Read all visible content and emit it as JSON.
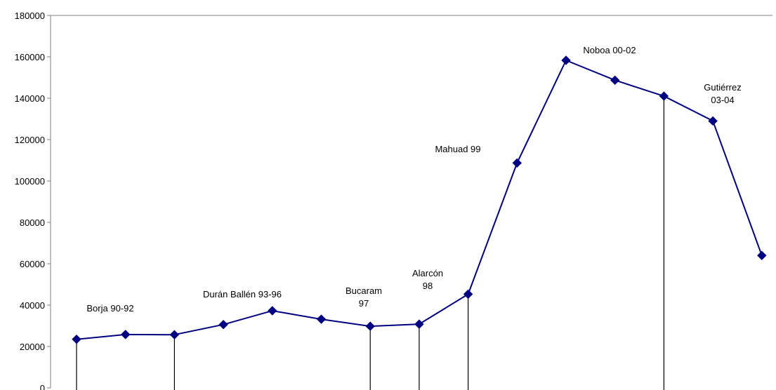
{
  "chart_data": {
    "type": "line",
    "title": "",
    "xlabel": "",
    "ylabel": "",
    "ylim": [
      0,
      180000
    ],
    "y_ticks": [
      0,
      20000,
      40000,
      60000,
      80000,
      100000,
      120000,
      140000,
      160000,
      180000
    ],
    "grid": false,
    "legend": "none",
    "series": [
      {
        "color": "#000080",
        "marker": "diamond",
        "values": [
          23500,
          25800,
          25700,
          30600,
          37300,
          33200,
          29800,
          30800,
          45300,
          108700,
          158300,
          148700,
          141000,
          129000,
          64000
        ]
      }
    ],
    "drop_lines_at": [
      0,
      2,
      6,
      7,
      8,
      12
    ],
    "annotations": [
      {
        "lines": [
          "Borja 90-92"
        ],
        "point": 0
      },
      {
        "lines": [
          "Durán Ballén 93-96"
        ],
        "point": 3
      },
      {
        "lines": [
          "Bucaram",
          "97"
        ],
        "point": 6
      },
      {
        "lines": [
          "Alarcón",
          "98"
        ],
        "point": 7
      },
      {
        "lines": [
          "Mahuad 99"
        ],
        "point": 9
      },
      {
        "lines": [
          "Noboa 00-02"
        ],
        "point": 10
      },
      {
        "lines": [
          "Gutiérrez",
          "03-04"
        ],
        "point": 13
      }
    ]
  }
}
